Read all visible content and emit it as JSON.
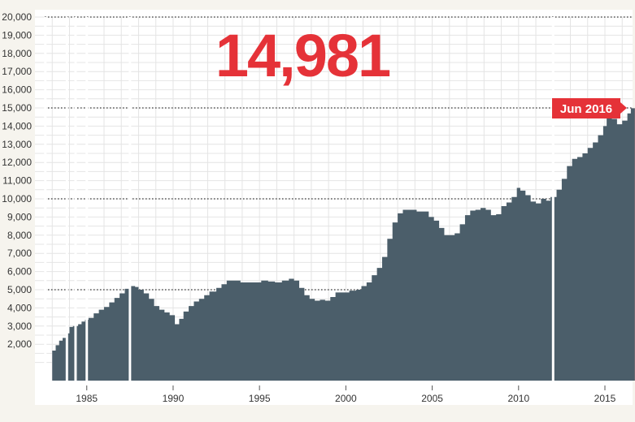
{
  "headline_value": "14,981",
  "callout_label": "Jun 2016",
  "colors": {
    "background": "#f6f4ee",
    "plot_background": "#ffffff",
    "grid": "#e4e4e4",
    "area_fill": "#4b5e6a",
    "accent_red": "#e53238",
    "axis_text": "#333333"
  },
  "chart_data": {
    "type": "area",
    "title": "",
    "xlabel": "",
    "ylabel": "",
    "xlim": [
      1982.0,
      2016.6
    ],
    "ylim": [
      0,
      20000
    ],
    "y_ticks": [
      2000,
      3000,
      4000,
      5000,
      6000,
      7000,
      8000,
      9000,
      10000,
      11000,
      12000,
      13000,
      14000,
      15000,
      16000,
      17000,
      18000,
      19000,
      20000
    ],
    "y_tick_labels": [
      "2,000",
      "3,000",
      "4,000",
      "5,000",
      "6,000",
      "7,000",
      "8,000",
      "9,000",
      "10,000",
      "11,000",
      "12,000",
      "13,000",
      "14,000",
      "15,000",
      "16,000",
      "17,000",
      "18,000",
      "19,000",
      "20,000"
    ],
    "x_ticks": [
      1985,
      1990,
      1995,
      2000,
      2005,
      2010,
      2015
    ],
    "x_tick_labels": [
      "1985",
      "1990",
      "1995",
      "2000",
      "2005",
      "2010",
      "2015"
    ],
    "dotted_reference_lines": [
      5000,
      10000,
      15000,
      20000
    ],
    "grid": true,
    "gaps_at_year": [
      1982.6,
      1983.85,
      1984.35,
      1985.0,
      1987.5,
      2012.0
    ],
    "x": [
      1983.0,
      1983.2,
      1983.4,
      1983.6,
      1983.8,
      1984.0,
      1984.2,
      1984.5,
      1984.7,
      1984.9,
      1985.1,
      1985.4,
      1985.7,
      1986.0,
      1986.3,
      1986.6,
      1986.9,
      1987.2,
      1987.45,
      1987.6,
      1987.8,
      1988.0,
      1988.3,
      1988.6,
      1988.9,
      1989.2,
      1989.5,
      1989.8,
      1990.1,
      1990.35,
      1990.6,
      1990.9,
      1991.2,
      1991.5,
      1991.8,
      1992.1,
      1992.5,
      1992.8,
      1993.1,
      1993.5,
      1993.9,
      1994.3,
      1994.7,
      1995.1,
      1995.5,
      1995.9,
      1996.3,
      1996.7,
      1997.0,
      1997.3,
      1997.6,
      1997.9,
      1998.2,
      1998.5,
      1998.8,
      1999.1,
      1999.4,
      1999.8,
      2000.2,
      2000.6,
      2000.9,
      2001.2,
      2001.5,
      2001.8,
      2002.1,
      2002.4,
      2002.7,
      2003.0,
      2003.3,
      2003.7,
      2004.1,
      2004.5,
      2004.8,
      2005.1,
      2005.4,
      2005.7,
      2006.0,
      2006.3,
      2006.6,
      2006.9,
      2007.2,
      2007.5,
      2007.8,
      2008.1,
      2008.4,
      2008.7,
      2009.0,
      2009.3,
      2009.6,
      2009.9,
      2010.1,
      2010.4,
      2010.7,
      2011.0,
      2011.3,
      2011.6,
      2011.85,
      2012.2,
      2012.5,
      2012.8,
      2013.1,
      2013.4,
      2013.7,
      2014.0,
      2014.3,
      2014.6,
      2014.9,
      2015.1,
      2015.4,
      2015.7,
      2016.0,
      2016.3,
      2016.5
    ],
    "values": [
      1650,
      1950,
      2200,
      2350,
      2600,
      2950,
      3000,
      3100,
      3250,
      3350,
      3450,
      3700,
      3900,
      4050,
      4300,
      4550,
      4800,
      5050,
      5200,
      5200,
      5150,
      5000,
      4800,
      4500,
      4100,
      3900,
      3750,
      3600,
      3100,
      3400,
      3800,
      4100,
      4350,
      4500,
      4700,
      4900,
      5100,
      5300,
      5500,
      5500,
      5400,
      5400,
      5400,
      5500,
      5450,
      5400,
      5500,
      5600,
      5500,
      5100,
      4700,
      4500,
      4400,
      4450,
      4400,
      4600,
      4850,
      4850,
      4950,
      5000,
      5200,
      5400,
      5800,
      6200,
      6800,
      7800,
      8700,
      9200,
      9400,
      9400,
      9300,
      9300,
      9000,
      8800,
      8400,
      8000,
      8000,
      8100,
      8600,
      9100,
      9350,
      9400,
      9500,
      9400,
      9100,
      9150,
      9600,
      9800,
      10100,
      10600,
      10450,
      10200,
      9850,
      9750,
      10000,
      9900,
      10100,
      10500,
      11100,
      11800,
      12200,
      12300,
      12500,
      12800,
      13100,
      13500,
      14000,
      14500,
      14400,
      14100,
      14300,
      14700,
      14981
    ],
    "highlight_point": {
      "x": "Jun 2016",
      "value": 14981
    }
  }
}
